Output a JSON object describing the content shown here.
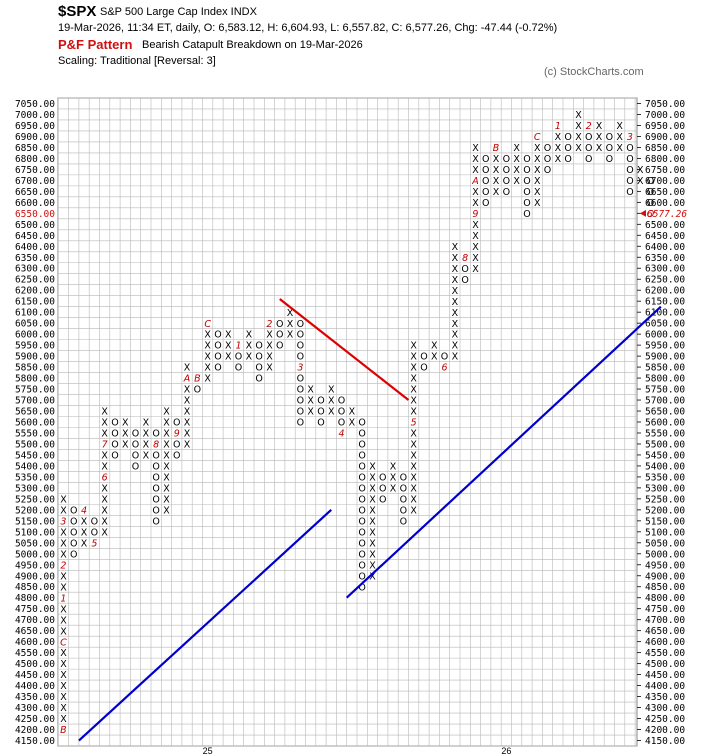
{
  "header": {
    "symbol": "$SPX",
    "name": "S&P 500 Large Cap Index  INDX",
    "quote": "19-Mar-2026, 11:34 ET, daily, O: 6,583.12, H: 6,604.93, L: 6,557.82, C: 6,577.26, Chg: -47.44 (-0.72%)",
    "chart_label": "P&F Pattern",
    "pattern": "Bearish Catapult Breakdown on 19-Mar-2026",
    "scaling": "Scaling: Traditional [Reversal: 3]",
    "copyright": "(c) StockCharts.com"
  },
  "chart_data": {
    "type": "point-and-figure",
    "box_size": 50,
    "reversal": 3,
    "ylim": [
      4150,
      7050
    ],
    "y_tick_step": 50,
    "year_labels": [
      {
        "col": 14,
        "text": "25"
      },
      {
        "col": 43,
        "text": "26"
      }
    ],
    "last_price_label": "6577.26",
    "last_price_box": 6550,
    "colors": {
      "x": "#000000",
      "o": "#000000",
      "month": "#c00000",
      "grid": "#b8b8b8",
      "support": "#0000cc",
      "resistance": "#dd0000",
      "price_tick": "#d01010"
    },
    "columns": [
      {
        "col": 0,
        "type": "X",
        "low": 4200,
        "high": 5250,
        "marks": {
          "4200": "B",
          "4600": "C",
          "4800": "1",
          "4950": "2",
          "5150": "3"
        }
      },
      {
        "col": 1,
        "type": "O",
        "low": 5000,
        "high": 5200
      },
      {
        "col": 2,
        "type": "X",
        "low": 5050,
        "high": 5200,
        "marks": {
          "5200": "4"
        }
      },
      {
        "col": 3,
        "type": "O",
        "low": 5050,
        "high": 5150,
        "marks": {
          "5050": "5"
        }
      },
      {
        "col": 4,
        "type": "X",
        "low": 5100,
        "high": 5650,
        "marks": {
          "5350": "6",
          "5500": "7"
        }
      },
      {
        "col": 5,
        "type": "O",
        "low": 5450,
        "high": 5600
      },
      {
        "col": 6,
        "type": "X",
        "low": 5500,
        "high": 5600
      },
      {
        "col": 7,
        "type": "O",
        "low": 5400,
        "high": 5550
      },
      {
        "col": 8,
        "type": "X",
        "low": 5450,
        "high": 5600
      },
      {
        "col": 9,
        "type": "O",
        "low": 5150,
        "high": 5550,
        "marks": {
          "5500": "8"
        }
      },
      {
        "col": 10,
        "type": "X",
        "low": 5200,
        "high": 5650
      },
      {
        "col": 11,
        "type": "O",
        "low": 5450,
        "high": 5600,
        "marks": {
          "5550": "9"
        }
      },
      {
        "col": 12,
        "type": "X",
        "low": 5500,
        "high": 5850,
        "marks": {
          "5800": "A"
        }
      },
      {
        "col": 13,
        "type": "O",
        "low": 5750,
        "high": 5800,
        "marks": {
          "5800": "B"
        }
      },
      {
        "col": 14,
        "type": "X",
        "low": 5800,
        "high": 6050,
        "marks": {
          "6050": "C"
        }
      },
      {
        "col": 15,
        "type": "O",
        "low": 5850,
        "high": 6000
      },
      {
        "col": 16,
        "type": "X",
        "low": 5900,
        "high": 6000
      },
      {
        "col": 17,
        "type": "O",
        "low": 5850,
        "high": 5950,
        "marks": {
          "5950": "1"
        }
      },
      {
        "col": 18,
        "type": "X",
        "low": 5900,
        "high": 6000
      },
      {
        "col": 19,
        "type": "O",
        "low": 5800,
        "high": 5950
      },
      {
        "col": 20,
        "type": "X",
        "low": 5850,
        "high": 6050,
        "marks": {
          "6050": "2"
        }
      },
      {
        "col": 21,
        "type": "O",
        "low": 5950,
        "high": 6050
      },
      {
        "col": 22,
        "type": "X",
        "low": 6000,
        "high": 6100
      },
      {
        "col": 23,
        "type": "O",
        "low": 5600,
        "high": 6050,
        "marks": {
          "5850": "3"
        }
      },
      {
        "col": 24,
        "type": "X",
        "low": 5650,
        "high": 5750
      },
      {
        "col": 25,
        "type": "O",
        "low": 5600,
        "high": 5700
      },
      {
        "col": 26,
        "type": "X",
        "low": 5650,
        "high": 5750
      },
      {
        "col": 27,
        "type": "O",
        "low": 5550,
        "high": 5700,
        "marks": {
          "5550": "4"
        }
      },
      {
        "col": 28,
        "type": "X",
        "low": 5600,
        "high": 5650
      },
      {
        "col": 29,
        "type": "O",
        "low": 4850,
        "high": 5600
      },
      {
        "col": 30,
        "type": "X",
        "low": 4900,
        "high": 5400
      },
      {
        "col": 31,
        "type": "O",
        "low": 5250,
        "high": 5350
      },
      {
        "col": 32,
        "type": "X",
        "low": 5300,
        "high": 5400
      },
      {
        "col": 33,
        "type": "O",
        "low": 5150,
        "high": 5350
      },
      {
        "col": 34,
        "type": "X",
        "low": 5200,
        "high": 5950,
        "marks": {
          "5600": "5"
        }
      },
      {
        "col": 35,
        "type": "O",
        "low": 5850,
        "high": 5900
      },
      {
        "col": 36,
        "type": "X",
        "low": 5900,
        "high": 5950
      },
      {
        "col": 37,
        "type": "O",
        "low": 5850,
        "high": 5900,
        "marks": {
          "5850": "6"
        }
      },
      {
        "col": 38,
        "type": "X",
        "low": 5900,
        "high": 6400
      },
      {
        "col": 39,
        "type": "O",
        "low": 6250,
        "high": 6350,
        "marks": {
          "6350": "8"
        }
      },
      {
        "col": 40,
        "type": "X",
        "low": 6300,
        "high": 6850,
        "marks": {
          "6550": "9",
          "6700": "A"
        }
      },
      {
        "col": 41,
        "type": "O",
        "low": 6600,
        "high": 6800
      },
      {
        "col": 42,
        "type": "X",
        "low": 6650,
        "high": 6850,
        "marks": {
          "6850": "B"
        }
      },
      {
        "col": 43,
        "type": "O",
        "low": 6650,
        "high": 6800
      },
      {
        "col": 44,
        "type": "X",
        "low": 6700,
        "high": 6850
      },
      {
        "col": 45,
        "type": "O",
        "low": 6550,
        "high": 6800
      },
      {
        "col": 46,
        "type": "X",
        "low": 6600,
        "high": 6900,
        "marks": {
          "6900": "C"
        }
      },
      {
        "col": 47,
        "type": "O",
        "low": 6750,
        "high": 6850
      },
      {
        "col": 48,
        "type": "X",
        "low": 6800,
        "high": 6950,
        "marks": {
          "6950": "1"
        }
      },
      {
        "col": 49,
        "type": "O",
        "low": 6800,
        "high": 6900
      },
      {
        "col": 50,
        "type": "X",
        "low": 6850,
        "high": 7000
      },
      {
        "col": 51,
        "type": "O",
        "low": 6800,
        "high": 6950,
        "marks": {
          "6950": "2"
        }
      },
      {
        "col": 52,
        "type": "X",
        "low": 6850,
        "high": 6950
      },
      {
        "col": 53,
        "type": "O",
        "low": 6800,
        "high": 6900
      },
      {
        "col": 54,
        "type": "X",
        "low": 6850,
        "high": 6950
      },
      {
        "col": 55,
        "type": "O",
        "low": 6650,
        "high": 6900,
        "marks": {
          "6900": "3"
        }
      },
      {
        "col": 56,
        "type": "X",
        "low": 6700,
        "high": 6750
      },
      {
        "col": 57,
        "type": "O",
        "low": 6550,
        "high": 6700,
        "marks": {
          "6550": "O"
        }
      }
    ],
    "trendlines": [
      {
        "kind": "support",
        "from": {
          "col": 1.5,
          "price": 4150
        },
        "to": {
          "col": 26,
          "price": 5200
        }
      },
      {
        "kind": "support",
        "from": {
          "col": 27.5,
          "price": 4800
        },
        "to": {
          "col": 58,
          "price": 6125
        }
      },
      {
        "kind": "resistance",
        "from": {
          "col": 21,
          "price": 6160
        },
        "to": {
          "col": 33.5,
          "price": 5700
        }
      }
    ]
  }
}
